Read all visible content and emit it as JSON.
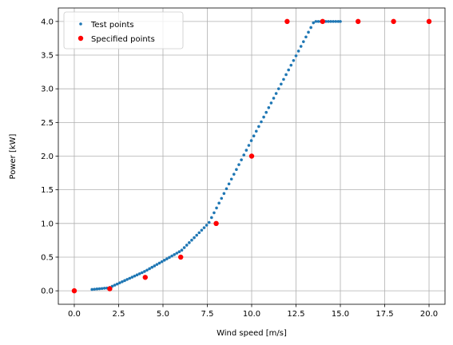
{
  "chart_data": {
    "type": "scatter",
    "title": "",
    "xlabel": "Wind speed [m/s]",
    "ylabel": "Power [kW]",
    "xlim": [
      -0.9,
      20.9
    ],
    "ylim": [
      -0.2,
      4.2
    ],
    "xticks": [
      0.0,
      2.5,
      5.0,
      7.5,
      10.0,
      12.5,
      15.0,
      17.5,
      20.0
    ],
    "xtick_labels": [
      "0.0",
      "2.5",
      "5.0",
      "7.5",
      "10.0",
      "12.5",
      "15.0",
      "17.5",
      "20.0"
    ],
    "yticks": [
      0.0,
      0.5,
      1.0,
      1.5,
      2.0,
      2.5,
      3.0,
      3.5,
      4.0
    ],
    "ytick_labels": [
      "0.0",
      "0.5",
      "1.0",
      "1.5",
      "2.0",
      "2.5",
      "3.0",
      "3.5",
      "4.0"
    ],
    "grid": true,
    "legend_position": "top-left",
    "series": [
      {
        "name": "Test points",
        "color": "#1f77b4",
        "x": [
          1.0,
          1.14,
          1.28,
          1.42,
          1.56,
          1.7,
          1.84,
          2.0,
          2.14,
          2.28,
          2.42,
          2.56,
          2.7,
          2.84,
          2.98,
          3.12,
          3.26,
          3.4,
          3.54,
          3.68,
          3.82,
          3.96,
          4.1,
          4.24,
          4.38,
          4.52,
          4.66,
          4.8,
          4.94,
          5.08,
          5.22,
          5.36,
          5.5,
          5.64,
          5.78,
          5.92,
          6.06,
          6.2,
          6.34,
          6.48,
          6.62,
          6.76,
          6.9,
          7.04,
          7.18,
          7.32,
          7.46,
          7.6,
          7.74,
          7.88,
          8.02,
          8.16,
          8.3,
          8.44,
          8.58,
          8.72,
          8.86,
          9.0,
          9.14,
          9.28,
          9.42,
          9.56,
          9.7,
          9.84,
          9.98,
          10.12,
          10.26,
          10.4,
          10.54,
          10.68,
          10.82,
          10.96,
          11.1,
          11.24,
          11.38,
          11.52,
          11.66,
          11.8,
          11.94,
          12.08,
          12.22,
          12.36,
          12.5,
          12.64,
          12.78,
          12.92,
          13.06,
          13.2,
          13.34,
          13.48,
          13.62,
          13.76,
          13.9,
          14.04,
          14.18,
          14.32,
          14.46,
          14.6,
          14.74,
          14.88,
          15.0
        ],
        "y": [
          0.02,
          0.024,
          0.027,
          0.031,
          0.034,
          0.038,
          0.041,
          0.05,
          0.067,
          0.084,
          0.101,
          0.118,
          0.135,
          0.152,
          0.169,
          0.185,
          0.202,
          0.219,
          0.236,
          0.253,
          0.27,
          0.287,
          0.307,
          0.328,
          0.349,
          0.37,
          0.391,
          0.412,
          0.433,
          0.454,
          0.475,
          0.496,
          0.517,
          0.538,
          0.559,
          0.58,
          0.604,
          0.641,
          0.678,
          0.715,
          0.752,
          0.789,
          0.826,
          0.863,
          0.9,
          0.937,
          0.974,
          1.015,
          1.087,
          1.159,
          1.23,
          1.302,
          1.373,
          1.445,
          1.516,
          1.588,
          1.659,
          1.731,
          1.802,
          1.874,
          1.945,
          2.017,
          2.088,
          2.16,
          2.23,
          2.3,
          2.37,
          2.44,
          2.51,
          2.58,
          2.65,
          2.72,
          2.79,
          2.86,
          2.93,
          3.0,
          3.07,
          3.14,
          3.21,
          3.28,
          3.35,
          3.42,
          3.49,
          3.56,
          3.63,
          3.7,
          3.77,
          3.84,
          3.91,
          3.98,
          4.0,
          4.0,
          4.0,
          4.0,
          4.0,
          4.0,
          4.0,
          4.0,
          4.0,
          4.0,
          4.0
        ]
      },
      {
        "name": "Specified points",
        "color": "#ff0000",
        "x": [
          0,
          2,
          4,
          6,
          8,
          10,
          12,
          14,
          16,
          18,
          20
        ],
        "y": [
          0.0,
          0.03,
          0.2,
          0.5,
          1.0,
          2.0,
          4.0,
          4.0,
          4.0,
          4.0,
          4.0
        ]
      }
    ]
  }
}
